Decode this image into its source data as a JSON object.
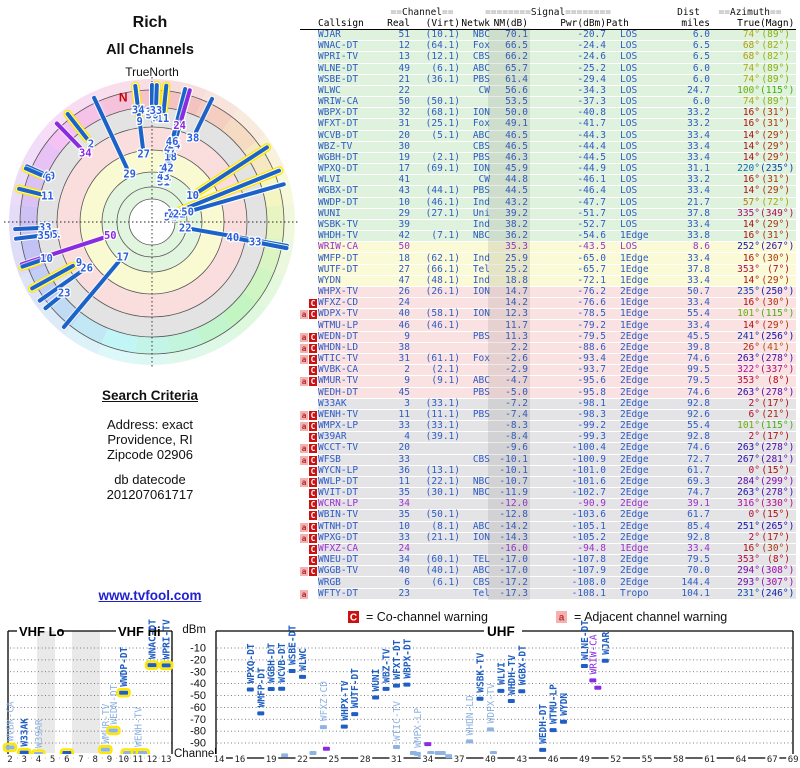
{
  "radar": {
    "title": "Rich",
    "subtitle": "All Channels",
    "orientation_label": "TrueNorth",
    "north_marker": "N"
  },
  "search": {
    "heading": "Search Criteria",
    "lines": [
      "Address: exact",
      "Providence, RI",
      "Zipcode 02906"
    ],
    "db_heading": "db datecode",
    "db_value": "201207061717"
  },
  "link_text": "www.tvfool.com",
  "legend": {
    "co_symbol": "C",
    "co_text": "= Co-channel warning",
    "adj_symbol": "a",
    "adj_text": "= Adjacent channel warning"
  },
  "colors": {
    "band_green": "#def2dd",
    "band_yellow": "#fafad6",
    "band_pink": "#fbe2e2",
    "band_gray": "#e4e4e7",
    "digital_blue": "#2e5cc5",
    "analog_purple": "#9a32cd",
    "bar_dark": "#1f5fc4",
    "bar_light": "#8fb4e3",
    "bar_analog": "#8a2be2",
    "halo_yellow": "#ffe800"
  },
  "table": {
    "group_headers": [
      {
        "pre": "==",
        "label": "Channel",
        "post": "=="
      },
      {
        "pre": "========",
        "label": "Signal",
        "post": "========"
      },
      {
        "pre": "",
        "label": "Dist",
        "post": ""
      },
      {
        "pre": "==",
        "label": "Azimuth",
        "post": "=="
      }
    ],
    "columns": [
      "Callsign",
      "Real",
      "(Virt)",
      "Netwk",
      "NM(dB)",
      "Pwr(dBm)",
      "Path",
      "miles",
      "True",
      "(Magn)"
    ],
    "rows": [
      [
        "WJAR",
        51,
        "(10.1)",
        "NBC",
        "70.1",
        "-20.7",
        "LOS",
        "6.0",
        74,
        89,
        "g",
        "",
        0
      ],
      [
        "WNAC-DT",
        12,
        "(64.1)",
        "Fox",
        "66.5",
        "-24.4",
        "LOS",
        "6.5",
        68,
        82,
        "g",
        "",
        0
      ],
      [
        "WPRI-TV",
        13,
        "(12.1)",
        "CBS",
        "66.2",
        "-24.6",
        "LOS",
        "6.5",
        68,
        82,
        "g",
        "",
        0
      ],
      [
        "WLNE-DT",
        49,
        "(6.1)",
        "ABC",
        "65.7",
        "-25.2",
        "LOS",
        "6.0",
        74,
        89,
        "g",
        "",
        0
      ],
      [
        "WSBE-DT",
        21,
        "(36.1)",
        "PBS",
        "61.4",
        "-29.4",
        "LOS",
        "6.0",
        74,
        89,
        "g",
        "",
        0
      ],
      [
        "WLWC",
        22,
        "",
        "CW",
        "56.6",
        "-34.3",
        "LOS",
        "24.7",
        100,
        115,
        "g",
        "",
        0
      ],
      [
        "WRIW-CA",
        50,
        "(50.1)",
        "",
        "53.5",
        "-37.3",
        "LOS",
        "6.0",
        74,
        89,
        "g",
        "",
        0
      ],
      [
        "WBPX-DT",
        32,
        "(68.1)",
        "ION",
        "50.0",
        "-40.8",
        "LOS",
        "33.2",
        16,
        31,
        "g",
        "",
        0
      ],
      [
        "WFXT-DT",
        31,
        "(25.1)",
        "Fox",
        "49.1",
        "-41.7",
        "LOS",
        "33.2",
        16,
        31,
        "g",
        "",
        0
      ],
      [
        "WCVB-DT",
        20,
        "(5.1)",
        "ABC",
        "46.5",
        "-44.3",
        "LOS",
        "33.4",
        14,
        29,
        "g",
        "",
        0
      ],
      [
        "WBZ-TV",
        30,
        "",
        "CBS",
        "46.5",
        "-44.4",
        "LOS",
        "33.4",
        14,
        29,
        "g",
        "",
        0
      ],
      [
        "WGBH-DT",
        19,
        "(2.1)",
        "PBS",
        "46.3",
        "-44.5",
        "LOS",
        "33.4",
        14,
        29,
        "g",
        "",
        0
      ],
      [
        "WPXQ-DT",
        17,
        "(69.1)",
        "ION",
        "45.9",
        "-44.9",
        "LOS",
        "31.1",
        220,
        235,
        "g",
        "",
        0
      ],
      [
        "WLVI",
        41,
        "",
        "CW",
        "44.8",
        "-46.1",
        "LOS",
        "33.2",
        16,
        31,
        "g",
        "",
        0
      ],
      [
        "WGBX-DT",
        43,
        "(44.1)",
        "PBS",
        "44.5",
        "-46.4",
        "LOS",
        "33.4",
        14,
        29,
        "g",
        "",
        0
      ],
      [
        "WWDP-DT",
        10,
        "(46.1)",
        "Ind",
        "43.2",
        "-47.7",
        "LOS",
        "21.7",
        57,
        72,
        "g",
        "",
        0
      ],
      [
        "WUNI",
        29,
        "(27.1)",
        "Uni",
        "39.2",
        "-51.7",
        "LOS",
        "37.8",
        335,
        349,
        "g",
        "",
        0
      ],
      [
        "WSBK-TV",
        39,
        "",
        "Ind",
        "38.2",
        "-52.7",
        "LOS",
        "33.4",
        14,
        29,
        "g",
        "",
        0
      ],
      [
        "WHDH-TV",
        42,
        "(7.1)",
        "NBC",
        "36.2",
        "-54.6",
        "1Edge",
        "33.8",
        16,
        31,
        "g",
        "",
        0
      ],
      [
        "WRIW-CA",
        50,
        "",
        "",
        "35.3",
        "-43.5",
        "LOS",
        "8.6",
        252,
        267,
        "y",
        "",
        1
      ],
      [
        "WMFP-DT",
        18,
        "(62.1)",
        "Ind",
        "25.9",
        "-65.0",
        "1Edge",
        "33.4",
        16,
        30,
        "y",
        "",
        0
      ],
      [
        "WUTF-DT",
        27,
        "(66.1)",
        "Tel",
        "25.2",
        "-65.7",
        "1Edge",
        "37.8",
        353,
        7,
        "y",
        "",
        0
      ],
      [
        "WYDN",
        47,
        "(48.1)",
        "Ind",
        "18.8",
        "-72.1",
        "1Edge",
        "33.4",
        14,
        29,
        "y",
        "",
        0
      ],
      [
        "WHPX-TV",
        26,
        "(26.1)",
        "ION",
        "14.7",
        "-76.2",
        "2Edge",
        "50.7",
        235,
        250,
        "p",
        "",
        0
      ],
      [
        "WFXZ-CD",
        24,
        "",
        "",
        "14.2",
        "-76.6",
        "1Edge",
        "33.4",
        16,
        30,
        "p",
        "C",
        0
      ],
      [
        "WDPX-TV",
        40,
        "(58.1)",
        "ION",
        "12.3",
        "-78.5",
        "1Edge",
        "55.4",
        101,
        115,
        "p",
        "aC",
        0
      ],
      [
        "WTMU-LP",
        46,
        "(46.1)",
        "",
        "11.7",
        "-79.2",
        "1Edge",
        "33.4",
        14,
        29,
        "p",
        "",
        0
      ],
      [
        "WEDN-DT",
        9,
        "",
        "PBS",
        "11.3",
        "-79.5",
        "2Edge",
        "45.5",
        241,
        256,
        "p",
        "aC",
        0
      ],
      [
        "WHDN-LD",
        38,
        "",
        "",
        "2.2",
        "-88.6",
        "2Edge",
        "39.8",
        26,
        41,
        "p",
        "aC",
        0
      ],
      [
        "WTIC-TV",
        31,
        "(61.1)",
        "Fox",
        "-2.6",
        "-93.4",
        "2Edge",
        "74.6",
        263,
        278,
        "p",
        "aC",
        0
      ],
      [
        "WVBK-CA",
        2,
        "(2.1)",
        "",
        "-2.9",
        "-93.7",
        "2Edge",
        "99.5",
        322,
        337,
        "p",
        "C",
        0
      ],
      [
        "WMUR-TV",
        9,
        "(9.1)",
        "ABC",
        "-4.7",
        "-95.6",
        "2Edge",
        "79.5",
        353,
        8,
        "p",
        "aC",
        0
      ],
      [
        "WEDH-DT",
        45,
        "",
        "PBS",
        "-5.0",
        "-95.8",
        "2Edge",
        "74.6",
        263,
        278,
        "p",
        "",
        0
      ],
      [
        "W33AK",
        3,
        "(33.1)",
        "",
        "-7.2",
        "-98.1",
        "2Edge",
        "92.8",
        2,
        17,
        "x",
        "",
        0
      ],
      [
        "WENH-TV",
        11,
        "(11.1)",
        "PBS",
        "-7.4",
        "-98.3",
        "2Edge",
        "92.6",
        6,
        21,
        "x",
        "aC",
        0
      ],
      [
        "WMPX-LP",
        33,
        "(33.1)",
        "",
        "-8.3",
        "-99.2",
        "2Edge",
        "55.4",
        101,
        115,
        "x",
        "aC",
        0
      ],
      [
        "W39AR",
        4,
        "(39.1)",
        "",
        "-8.4",
        "-99.3",
        "2Edge",
        "92.8",
        2,
        17,
        "x",
        "C",
        0
      ],
      [
        "WCCT-TV",
        20,
        "",
        "",
        "-9.6",
        "-100.4",
        "2Edge",
        "74.6",
        263,
        278,
        "x",
        "aC",
        0
      ],
      [
        "WFSB",
        33,
        "",
        "CBS",
        "-10.1",
        "-100.9",
        "2Edge",
        "72.7",
        267,
        281,
        "x",
        "aC",
        0
      ],
      [
        "WYCN-LP",
        36,
        "(13.1)",
        "",
        "-10.1",
        "-101.0",
        "2Edge",
        "61.7",
        0,
        15,
        "x",
        "C",
        0
      ],
      [
        "WWLP-DT",
        11,
        "(22.1)",
        "NBC",
        "-10.7",
        "-101.6",
        "2Edge",
        "69.3",
        284,
        299,
        "x",
        "aC",
        0
      ],
      [
        "WVIT-DT",
        35,
        "(30.1)",
        "NBC",
        "-11.9",
        "-102.7",
        "2Edge",
        "74.7",
        263,
        278,
        "x",
        "C",
        0
      ],
      [
        "WCRN-LP",
        34,
        "",
        "",
        "-12.0",
        "-90.9",
        "2Edge",
        "39.1",
        316,
        330,
        "x",
        "C",
        1
      ],
      [
        "WBIN-TV",
        35,
        "(50.1)",
        "",
        "-12.8",
        "-103.6",
        "2Edge",
        "61.7",
        0,
        15,
        "x",
        "C",
        0
      ],
      [
        "WTNH-DT",
        10,
        "(8.1)",
        "ABC",
        "-14.2",
        "-105.1",
        "2Edge",
        "85.4",
        251,
        265,
        "x",
        "aC",
        0
      ],
      [
        "WPXG-DT",
        33,
        "(21.1)",
        "ION",
        "-14.3",
        "-105.2",
        "2Edge",
        "92.8",
        2,
        17,
        "x",
        "aC",
        0
      ],
      [
        "WFXZ-CA",
        24,
        "",
        "",
        "-16.0",
        "-94.8",
        "1Edge",
        "33.4",
        16,
        30,
        "x",
        "C",
        1
      ],
      [
        "WNEU-DT",
        34,
        "(60.1)",
        "TEL",
        "-17.0",
        "-107.8",
        "2Edge",
        "79.5",
        353,
        8,
        "x",
        "C",
        0
      ],
      [
        "WGGB-TV",
        40,
        "(40.1)",
        "ABC",
        "-17.0",
        "-107.9",
        "2Edge",
        "70.0",
        294,
        308,
        "x",
        "aC",
        0
      ],
      [
        "WRGB",
        6,
        "(6.1)",
        "CBS",
        "-17.2",
        "-108.0",
        "2Edge",
        "144.4",
        293,
        307,
        "x",
        "",
        0
      ],
      [
        "WFTY-DT",
        23,
        "",
        "Tel",
        "-17.3",
        "-108.1",
        "Tropo",
        "104.1",
        231,
        246,
        "x",
        "a",
        0
      ]
    ]
  },
  "chart_data": [
    {
      "type": "radar",
      "title": "Rich",
      "subtitle": "All Channels",
      "orientation_label": "TrueNorth",
      "north_marker": "N",
      "zones_inner_to_outer": [
        "strong(green)",
        "moderate(yellow)",
        "weak(pink)",
        "fringe(gray)",
        "compass-hue ring"
      ],
      "note": "bars plotted from table rows: angle = True azimuth, radial depth = Pwr(dBm); labels = real channel; yellow halo = VHF 2-13; purple = analog"
    },
    {
      "type": "scatter",
      "title": "VHF Lo / VHF Hi",
      "section_labels": [
        "VHF Lo",
        "VHF Hi"
      ],
      "xlabel": "Channel",
      "ylabel": "dBm",
      "xticks": [
        2,
        3,
        4,
        5,
        6,
        7,
        8,
        9,
        10,
        11,
        12,
        13
      ],
      "yticks": [
        -10,
        -20,
        -30,
        -40,
        -50,
        -60,
        -70,
        -80,
        -90
      ],
      "ylim": [
        -102,
        0
      ],
      "point_styles": {
        "d": "digital-strong",
        "l": "warned-light",
        "a": "analog-purple"
      },
      "points": [
        [
          "WVBK-CA",
          2,
          -93.7,
          "l",
          1,
          0
        ],
        [
          "W33AK",
          3,
          -98.1,
          "d",
          1,
          0
        ],
        [
          "W39AR",
          4,
          -99.3,
          "l",
          1,
          0
        ],
        [
          "WRGB",
          6,
          -108.0,
          "d",
          0,
          0
        ],
        [
          "WMUR-TV",
          9,
          -95.6,
          "l",
          1,
          -4
        ],
        [
          "WEDN-DT",
          9,
          -79.5,
          "l",
          1,
          4
        ],
        [
          "WWDP-DT",
          10,
          -47.7,
          "d",
          1,
          0
        ],
        [
          "WTNH-DT",
          10,
          -105.1,
          "l",
          0,
          4
        ],
        [
          "WENH-TV",
          11,
          -98.3,
          "l",
          1,
          0
        ],
        [
          "WWLP-DT",
          11,
          -101.6,
          "l",
          0,
          5
        ],
        [
          "WNAC-DT",
          12,
          -24.4,
          "d",
          1,
          0
        ],
        [
          "WPRI-TV",
          13,
          -24.6,
          "d",
          1,
          0
        ]
      ]
    },
    {
      "type": "scatter",
      "title": "UHF",
      "xlabel": "Channel",
      "ylabel": "dBm",
      "xticks": [
        14,
        16,
        19,
        22,
        25,
        28,
        31,
        34,
        37,
        40,
        43,
        46,
        49,
        52,
        55,
        58,
        61,
        64,
        67,
        69
      ],
      "yticks": [
        -10,
        -20,
        -30,
        -40,
        -50,
        -60,
        -70,
        -80,
        -90
      ],
      "ylim": [
        -102,
        0
      ],
      "points": [
        [
          "WPXQ-DT",
          17,
          -44.9,
          "d",
          1,
          0
        ],
        [
          "WMFP-DT",
          18,
          -65.0,
          "d",
          1,
          0
        ],
        [
          "WGBH-DT",
          19,
          -44.5,
          "d",
          1,
          0
        ],
        [
          "WCVB-DT",
          20,
          -44.3,
          "d",
          1,
          0
        ],
        [
          "WCCT-TV",
          20,
          -100.4,
          "l",
          0,
          3
        ],
        [
          "WSBE-DT",
          21,
          -29.4,
          "d",
          1,
          0
        ],
        [
          "WLWC",
          22,
          -34.3,
          "d",
          1,
          0
        ],
        [
          "WFTY-DT",
          23,
          -108.1,
          "l",
          0,
          0
        ],
        [
          "WFXZ-CD",
          24,
          -76.6,
          "l",
          1,
          0
        ],
        [
          "WFXZ-CA",
          24,
          -94.8,
          "a",
          0,
          3
        ],
        [
          "WHPX-TV",
          26,
          -76.2,
          "d",
          1,
          0
        ],
        [
          "WUTF-DT",
          27,
          -65.7,
          "d",
          1,
          0
        ],
        [
          "WUNI",
          29,
          -51.7,
          "d",
          1,
          0
        ],
        [
          "WBZ-TV",
          30,
          -44.4,
          "d",
          1,
          0
        ],
        [
          "WFXT-DT",
          31,
          -41.7,
          "d",
          1,
          0
        ],
        [
          "WTIC-TV",
          31,
          -93.4,
          "l",
          1,
          0
        ],
        [
          "WBPX-DT",
          32,
          -40.8,
          "d",
          1,
          0
        ],
        [
          "WMPX-LP",
          33,
          -99.2,
          "l",
          1,
          0
        ],
        [
          "WFSB",
          33,
          -100.9,
          "l",
          0,
          4
        ],
        [
          "WPXG-DT",
          33,
          -105.2,
          "l",
          0,
          -4
        ],
        [
          "WCRN-LP",
          34,
          -90.9,
          "a",
          0,
          0
        ],
        [
          "WNEU-DT",
          34,
          -107.8,
          "l",
          0,
          3
        ],
        [
          "WVIT-DT",
          35,
          -102.7,
          "l",
          0,
          0
        ],
        [
          "WBIN-TV",
          35,
          -103.6,
          "l",
          0,
          4
        ],
        [
          "WYCN-LP",
          36,
          -101.0,
          "l",
          0,
          0
        ],
        [
          "WHDN-LD",
          38,
          -88.6,
          "l",
          1,
          0
        ],
        [
          "WSBK-TV",
          39,
          -52.7,
          "d",
          1,
          0
        ],
        [
          "WDPX-TV",
          40,
          -78.5,
          "l",
          1,
          0
        ],
        [
          "WGGB-TV",
          40,
          -107.9,
          "l",
          0,
          3
        ],
        [
          "WLVI",
          41,
          -46.1,
          "d",
          1,
          0
        ],
        [
          "WHDH-TV",
          42,
          -54.6,
          "d",
          1,
          0
        ],
        [
          "WGBX-DT",
          43,
          -46.4,
          "d",
          1,
          0
        ],
        [
          "WEDH-DT",
          45,
          -95.8,
          "d",
          1,
          0
        ],
        [
          "WTMU-LP",
          46,
          -79.2,
          "d",
          1,
          0
        ],
        [
          "WYDN",
          47,
          -72.1,
          "d",
          1,
          0
        ],
        [
          "WLNE-DT",
          49,
          -25.2,
          "d",
          1,
          0
        ],
        [
          "WRIW-CA",
          50,
          -37.3,
          "a",
          1,
          -2
        ],
        [
          "WRIW-CA",
          50,
          -43.5,
          "a",
          0,
          3
        ],
        [
          "WJAR",
          51,
          -20.7,
          "d",
          1,
          0
        ]
      ]
    }
  ]
}
